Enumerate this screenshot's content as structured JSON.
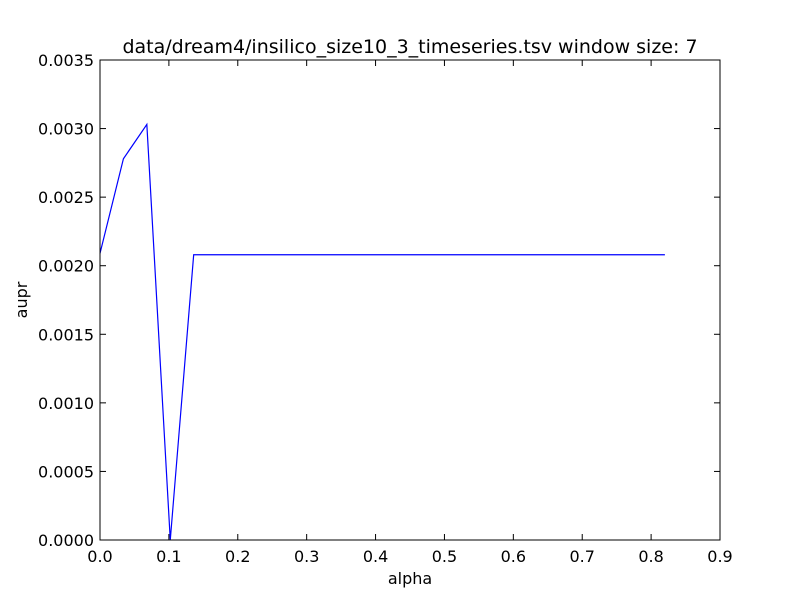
{
  "chart_data": {
    "type": "line",
    "title": "data/dream4/insilico_size10_3_timeseries.tsv window size: 7",
    "xlabel": "alpha",
    "ylabel": "aupr",
    "xlim": [
      0.0,
      0.9
    ],
    "ylim": [
      0.0,
      0.0035
    ],
    "x_ticks": [
      "0.0",
      "0.1",
      "0.2",
      "0.3",
      "0.4",
      "0.5",
      "0.6",
      "0.7",
      "0.8",
      "0.9"
    ],
    "y_ticks": [
      "0.0000",
      "0.0005",
      "0.0010",
      "0.0015",
      "0.0020",
      "0.0025",
      "0.0030",
      "0.0035"
    ],
    "grid": false,
    "series": [
      {
        "color": "#0000ff",
        "x": [
          0.0,
          0.034,
          0.068,
          0.102,
          0.136,
          0.82
        ],
        "y": [
          0.00209,
          0.00278,
          0.00303,
          0.0,
          0.00208,
          0.00208
        ]
      }
    ]
  }
}
